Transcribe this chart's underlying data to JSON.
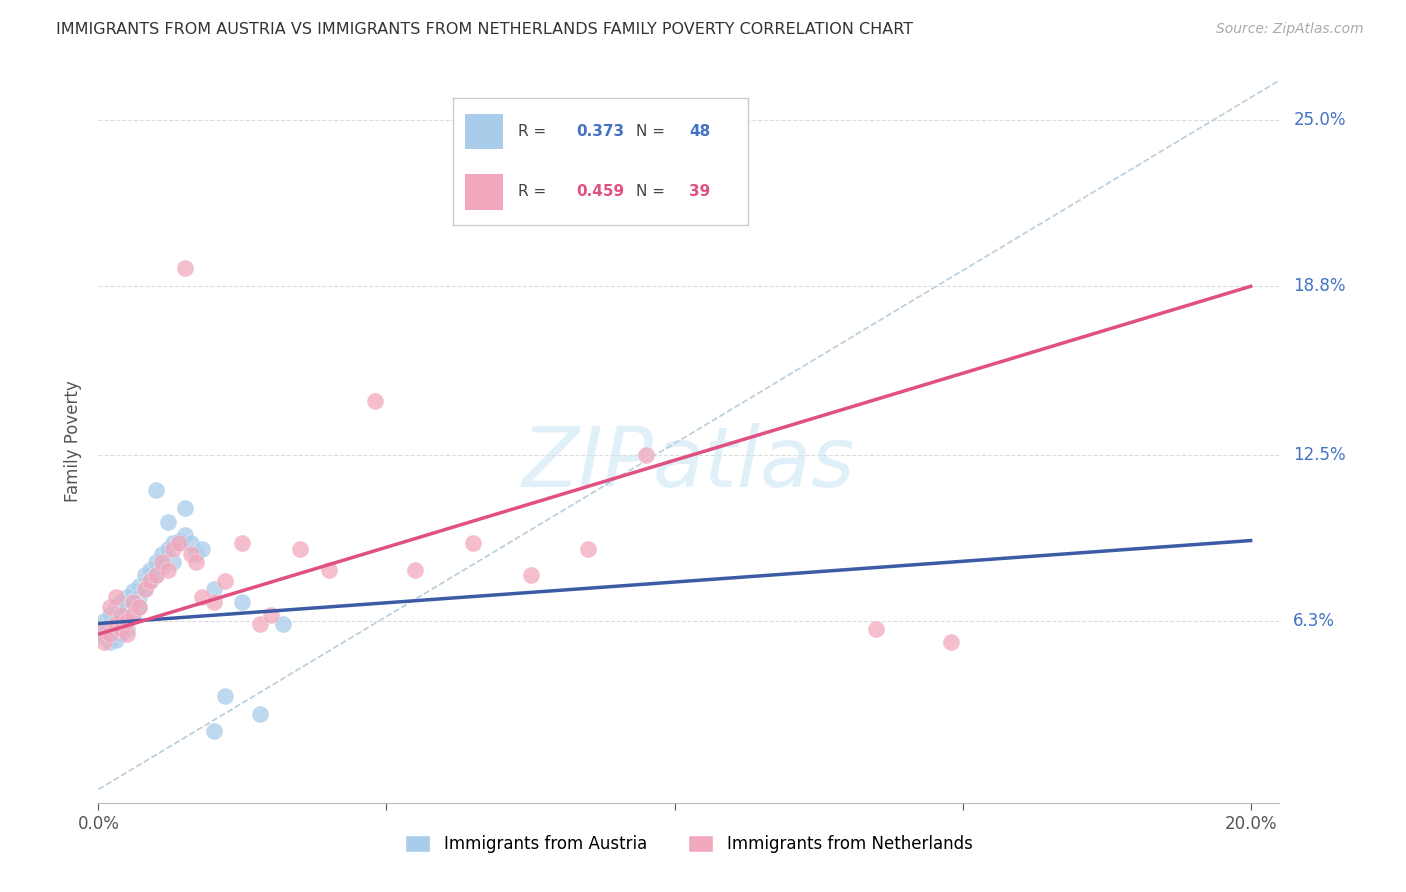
{
  "title": "IMMIGRANTS FROM AUSTRIA VS IMMIGRANTS FROM NETHERLANDS FAMILY POVERTY CORRELATION CHART",
  "source_text": "Source: ZipAtlas.com",
  "ylabel": "Family Poverty",
  "xlim": [
    0.0,
    0.205
  ],
  "ylim": [
    -0.005,
    0.265
  ],
  "yticks": [
    0.063,
    0.125,
    0.188,
    0.25
  ],
  "ytick_labels": [
    "6.3%",
    "12.5%",
    "18.8%",
    "25.0%"
  ],
  "xticks": [
    0.0,
    0.05,
    0.1,
    0.15,
    0.2
  ],
  "xtick_labels": [
    "0.0%",
    "",
    "",
    "",
    "20.0%"
  ],
  "legend1_label": "Immigrants from Austria",
  "legend2_label": "Immigrants from Netherlands",
  "R1": 0.373,
  "N1": 48,
  "R2": 0.459,
  "N2": 39,
  "color_austria": "#A8CCEA",
  "color_netherlands": "#F2A8BC",
  "color_austria_line": "#3B5BA5",
  "color_netherlands_line": "#E05080",
  "color_austria_text": "#4472C4",
  "color_netherlands_text": "#E05080",
  "watermark_color": "#C8E4F5",
  "austria_x": [
    0.001,
    0.001,
    0.001,
    0.002,
    0.002,
    0.002,
    0.003,
    0.003,
    0.003,
    0.003,
    0.004,
    0.004,
    0.004,
    0.004,
    0.005,
    0.005,
    0.005,
    0.006,
    0.006,
    0.006,
    0.007,
    0.007,
    0.007,
    0.008,
    0.008,
    0.009,
    0.009,
    0.01,
    0.01,
    0.011,
    0.011,
    0.012,
    0.013,
    0.013,
    0.014,
    0.015,
    0.016,
    0.017,
    0.018,
    0.02,
    0.022,
    0.025,
    0.028,
    0.032,
    0.01,
    0.012,
    0.015,
    0.02
  ],
  "austria_y": [
    0.06,
    0.063,
    0.057,
    0.065,
    0.058,
    0.055,
    0.068,
    0.06,
    0.063,
    0.056,
    0.07,
    0.065,
    0.062,
    0.058,
    0.072,
    0.068,
    0.06,
    0.074,
    0.07,
    0.065,
    0.076,
    0.072,
    0.068,
    0.08,
    0.075,
    0.082,
    0.078,
    0.085,
    0.08,
    0.088,
    0.083,
    0.09,
    0.092,
    0.085,
    0.093,
    0.095,
    0.092,
    0.088,
    0.09,
    0.022,
    0.035,
    0.07,
    0.028,
    0.062,
    0.112,
    0.1,
    0.105,
    0.075
  ],
  "netherlands_x": [
    0.001,
    0.001,
    0.002,
    0.002,
    0.003,
    0.003,
    0.004,
    0.004,
    0.005,
    0.005,
    0.006,
    0.006,
    0.007,
    0.008,
    0.009,
    0.01,
    0.011,
    0.012,
    0.013,
    0.014,
    0.015,
    0.016,
    0.017,
    0.018,
    0.02,
    0.022,
    0.025,
    0.028,
    0.03,
    0.035,
    0.04,
    0.048,
    0.055,
    0.065,
    0.075,
    0.085,
    0.095,
    0.135,
    0.148
  ],
  "netherlands_y": [
    0.06,
    0.055,
    0.068,
    0.058,
    0.062,
    0.072,
    0.06,
    0.065,
    0.058,
    0.063,
    0.07,
    0.065,
    0.068,
    0.075,
    0.078,
    0.08,
    0.085,
    0.082,
    0.09,
    0.092,
    0.195,
    0.088,
    0.085,
    0.072,
    0.07,
    0.078,
    0.092,
    0.062,
    0.065,
    0.09,
    0.082,
    0.145,
    0.082,
    0.092,
    0.08,
    0.09,
    0.125,
    0.06,
    0.055
  ],
  "austria_trend": [
    0.062,
    0.093
  ],
  "netherlands_trend": [
    0.058,
    0.188
  ],
  "trend_x": [
    0.0,
    0.2
  ]
}
